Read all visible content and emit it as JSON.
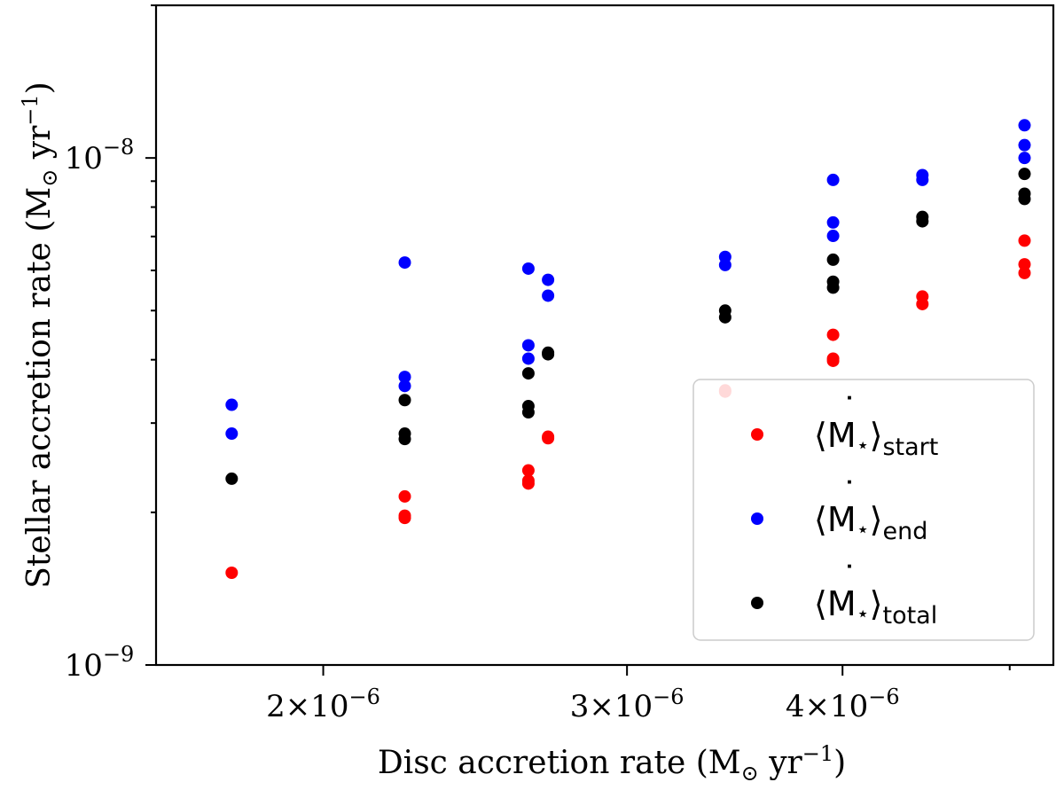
{
  "chart_data": {
    "type": "scatter",
    "xscale": "log",
    "yscale": "log",
    "xlim": [
      1.6e-06,
      5.3e-06
    ],
    "ylim": [
      1e-09,
      2e-08
    ],
    "xlabel": {
      "main": "Disc accretion rate (M",
      "sub": "⊙",
      "mid": " yr",
      "sup": "−1",
      "end": ")"
    },
    "ylabel": {
      "main": "Stellar accretion rate (M",
      "sub": "⊙",
      "mid": " yr",
      "sup": "−1",
      "end": ")"
    },
    "x_ticks": [
      {
        "value": 2e-06,
        "coef": "2",
        "base": "10",
        "exp": "−6"
      },
      {
        "value": 3e-06,
        "coef": "3",
        "base": "10",
        "exp": "−6"
      },
      {
        "value": 4e-06,
        "coef": "4",
        "base": "10",
        "exp": "−6"
      }
    ],
    "x_minor_ticks": [
      5e-06
    ],
    "y_ticks": [
      {
        "value": 1e-09,
        "base": "10",
        "exp": "−9"
      },
      {
        "value": 1e-08,
        "base": "10",
        "exp": "−8"
      }
    ],
    "y_minor_ticks": [
      2e-09,
      3e-09,
      4e-09,
      5e-09,
      6e-09,
      7e-09,
      8e-09,
      9e-09,
      2e-08
    ],
    "legend": {
      "position": "lower-right"
    },
    "series": [
      {
        "name": "⟨Ṁ⋆⟩start",
        "label_main": "⟨M",
        "label_dot": "˙",
        "label_star": "⋆",
        "label_close": "⟩",
        "label_sub": "start",
        "color": "#ff0000",
        "points": [
          {
            "x": 1.77e-06,
            "y": 1.52e-09
          },
          {
            "x": 2.23e-06,
            "y": 2.15e-09
          },
          {
            "x": 2.23e-06,
            "y": 1.97e-09
          },
          {
            "x": 2.23e-06,
            "y": 1.95e-09
          },
          {
            "x": 2.63e-06,
            "y": 2.42e-09
          },
          {
            "x": 2.63e-06,
            "y": 2.31e-09
          },
          {
            "x": 2.63e-06,
            "y": 2.28e-09
          },
          {
            "x": 2.7e-06,
            "y": 2.82e-09
          },
          {
            "x": 2.7e-06,
            "y": 2.8e-09
          },
          {
            "x": 3.42e-06,
            "y": 3.48e-09
          },
          {
            "x": 3.42e-06,
            "y": 3.46e-09
          },
          {
            "x": 3.95e-06,
            "y": 4.48e-09
          },
          {
            "x": 3.95e-06,
            "y": 4.02e-09
          },
          {
            "x": 3.95e-06,
            "y": 3.98e-09
          },
          {
            "x": 4.45e-06,
            "y": 5.33e-09
          },
          {
            "x": 4.45e-06,
            "y": 5.15e-09
          },
          {
            "x": 5.1e-06,
            "y": 6.87e-09
          },
          {
            "x": 5.1e-06,
            "y": 6.17e-09
          },
          {
            "x": 5.1e-06,
            "y": 5.93e-09
          }
        ]
      },
      {
        "name": "⟨Ṁ⋆⟩end",
        "label_main": "⟨M",
        "label_dot": "˙",
        "label_star": "⋆",
        "label_close": "⟩",
        "label_sub": "end",
        "color": "#0000ff",
        "points": [
          {
            "x": 1.77e-06,
            "y": 3.26e-09
          },
          {
            "x": 1.77e-06,
            "y": 2.86e-09
          },
          {
            "x": 2.23e-06,
            "y": 6.22e-09
          },
          {
            "x": 2.23e-06,
            "y": 3.7e-09
          },
          {
            "x": 2.23e-06,
            "y": 3.55e-09
          },
          {
            "x": 2.63e-06,
            "y": 6.05e-09
          },
          {
            "x": 2.63e-06,
            "y": 4.27e-09
          },
          {
            "x": 2.63e-06,
            "y": 4.02e-09
          },
          {
            "x": 2.7e-06,
            "y": 5.75e-09
          },
          {
            "x": 2.7e-06,
            "y": 5.35e-09
          },
          {
            "x": 3.42e-06,
            "y": 6.38e-09
          },
          {
            "x": 3.42e-06,
            "y": 6.15e-09
          },
          {
            "x": 3.95e-06,
            "y": 9.05e-09
          },
          {
            "x": 3.95e-06,
            "y": 7.46e-09
          },
          {
            "x": 3.95e-06,
            "y": 7.02e-09
          },
          {
            "x": 4.45e-06,
            "y": 9.25e-09
          },
          {
            "x": 4.45e-06,
            "y": 9.05e-09
          },
          {
            "x": 5.1e-06,
            "y": 1.16e-08
          },
          {
            "x": 5.1e-06,
            "y": 1.06e-08
          },
          {
            "x": 5.1e-06,
            "y": 1e-08
          }
        ]
      },
      {
        "name": "⟨Ṁ⋆⟩total",
        "label_main": "⟨M",
        "label_dot": "˙",
        "label_star": "⋆",
        "label_close": "⟩",
        "label_sub": "total",
        "color": "#000000",
        "points": [
          {
            "x": 1.77e-06,
            "y": 2.33e-09
          },
          {
            "x": 2.23e-06,
            "y": 3.33e-09
          },
          {
            "x": 2.23e-06,
            "y": 2.86e-09
          },
          {
            "x": 2.23e-06,
            "y": 2.79e-09
          },
          {
            "x": 2.63e-06,
            "y": 3.76e-09
          },
          {
            "x": 2.63e-06,
            "y": 3.24e-09
          },
          {
            "x": 2.63e-06,
            "y": 3.15e-09
          },
          {
            "x": 2.7e-06,
            "y": 4.13e-09
          },
          {
            "x": 2.7e-06,
            "y": 4.1e-09
          },
          {
            "x": 3.42e-06,
            "y": 5e-09
          },
          {
            "x": 3.42e-06,
            "y": 4.85e-09
          },
          {
            "x": 3.95e-06,
            "y": 6.3e-09
          },
          {
            "x": 3.95e-06,
            "y": 5.7e-09
          },
          {
            "x": 3.95e-06,
            "y": 5.55e-09
          },
          {
            "x": 4.45e-06,
            "y": 7.65e-09
          },
          {
            "x": 4.45e-06,
            "y": 7.5e-09
          },
          {
            "x": 5.1e-06,
            "y": 9.3e-09
          },
          {
            "x": 5.1e-06,
            "y": 8.5e-09
          },
          {
            "x": 5.1e-06,
            "y": 8.3e-09
          }
        ]
      }
    ]
  }
}
